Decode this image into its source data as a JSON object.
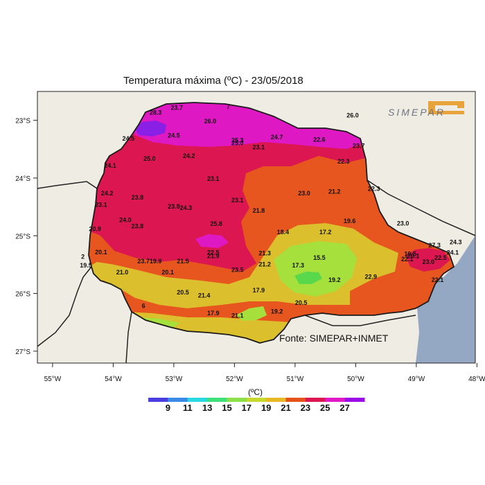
{
  "title": "Temperatura máxima (ºC)  -  23/05/2018",
  "source": "Fonte: SIMEPAR+INMET",
  "logo": "SIMEPAR",
  "unit_label": "(ºC)",
  "axes": {
    "lon_labels": [
      "55°W",
      "54°W",
      "53°W",
      "52°W",
      "51°W",
      "50°W",
      "49°W",
      "48°W"
    ],
    "lat_labels": [
      "23°S",
      "24°S",
      "25°S",
      "26°S",
      "27°S"
    ]
  },
  "colorbar": {
    "ticks": [
      "9",
      "11",
      "13",
      "15",
      "17",
      "19",
      "21",
      "23",
      "25",
      "27"
    ],
    "colors": [
      "#4b3de0",
      "#3a8be8",
      "#2ad8e0",
      "#3fe07a",
      "#8ee04a",
      "#c6d92c",
      "#e8b826",
      "#e6521c",
      "#dc1650",
      "#e21ac6",
      "#9a0ce8"
    ]
  },
  "colors": {
    "land": "#efece4",
    "ocean": "#94a8c4",
    "band_15_17": "#58d84a",
    "band_17_19": "#a6e03c",
    "band_19_21": "#dcbf2c",
    "band_21_23": "#e6561e",
    "band_23_25": "#dc1650",
    "band_25_27": "#de18c2",
    "band_27_29": "#8a20e6"
  },
  "station_values": [
    {
      "lon": -53.3,
      "lat": -22.9,
      "label": "28.3"
    },
    {
      "lon": -52.4,
      "lat": -23.05,
      "label": "26.0"
    },
    {
      "lon": -53.75,
      "lat": -23.35,
      "label": "24.5"
    },
    {
      "lon": -53.0,
      "lat": -23.3,
      "label": "24.5"
    },
    {
      "lon": -51.95,
      "lat": -23.38,
      "label": "25.3"
    },
    {
      "lon": -51.95,
      "lat": -23.43,
      "label": "25.0"
    },
    {
      "lon": -51.6,
      "lat": -23.5,
      "label": "23.1"
    },
    {
      "lon": -51.3,
      "lat": -23.33,
      "label": "24.7"
    },
    {
      "lon": -50.6,
      "lat": -23.37,
      "label": "22.6"
    },
    {
      "lon": -49.95,
      "lat": -23.48,
      "label": "23.7"
    },
    {
      "lon": -50.2,
      "lat": -23.75,
      "label": "22.3"
    },
    {
      "lon": -53.4,
      "lat": -23.7,
      "label": "25.0"
    },
    {
      "lon": -52.75,
      "lat": -23.65,
      "label": "24.2"
    },
    {
      "lon": -54.05,
      "lat": -23.82,
      "label": "24.1"
    },
    {
      "lon": -52.35,
      "lat": -24.05,
      "label": "23.1"
    },
    {
      "lon": -54.1,
      "lat": -24.3,
      "label": "24.2"
    },
    {
      "lon": -53.6,
      "lat": -24.37,
      "label": "23.8"
    },
    {
      "lon": -54.2,
      "lat": -24.5,
      "label": "23.1"
    },
    {
      "lon": -53.0,
      "lat": -24.53,
      "label": "23.8"
    },
    {
      "lon": -52.8,
      "lat": -24.55,
      "label": "24.3"
    },
    {
      "lon": -51.95,
      "lat": -24.42,
      "label": "23.1"
    },
    {
      "lon": -53.8,
      "lat": -24.76,
      "label": "24.0"
    },
    {
      "lon": -53.6,
      "lat": -24.87,
      "label": "23.8"
    },
    {
      "lon": -52.3,
      "lat": -24.83,
      "label": "25.8"
    },
    {
      "lon": -51.6,
      "lat": -24.6,
      "label": "21.8"
    },
    {
      "lon": -50.85,
      "lat": -24.3,
      "label": "23.0"
    },
    {
      "lon": -50.35,
      "lat": -24.27,
      "label": "21.2"
    },
    {
      "lon": -49.7,
      "lat": -24.22,
      "label": "22.3"
    },
    {
      "lon": -50.1,
      "lat": -24.78,
      "label": "19.6"
    },
    {
      "lon": -49.22,
      "lat": -24.82,
      "label": "23.0"
    },
    {
      "lon": -51.2,
      "lat": -24.97,
      "label": "18.4"
    },
    {
      "lon": -50.5,
      "lat": -24.97,
      "label": "17.2"
    },
    {
      "lon": -54.3,
      "lat": -24.92,
      "label": "20.9"
    },
    {
      "lon": -54.2,
      "lat": -25.32,
      "label": "20.1"
    },
    {
      "lon": -54.5,
      "lat": -25.4,
      "label": "2"
    },
    {
      "lon": -54.45,
      "lat": -25.55,
      "label": "19.5"
    },
    {
      "lon": -53.5,
      "lat": -25.48,
      "label": "23.7"
    },
    {
      "lon": -53.3,
      "lat": -25.48,
      "label": "19.9"
    },
    {
      "lon": -52.85,
      "lat": -25.48,
      "label": "21.5"
    },
    {
      "lon": -53.85,
      "lat": -25.67,
      "label": "21.0"
    },
    {
      "lon": -53.1,
      "lat": -25.67,
      "label": "20.1"
    },
    {
      "lon": -52.35,
      "lat": -25.33,
      "label": "22.5"
    },
    {
      "lon": -52.35,
      "lat": -25.39,
      "label": "21.9"
    },
    {
      "lon": -51.95,
      "lat": -25.63,
      "label": "23.5"
    },
    {
      "lon": -51.5,
      "lat": -25.34,
      "label": "21.3"
    },
    {
      "lon": -51.5,
      "lat": -25.53,
      "label": "21.2"
    },
    {
      "lon": -50.95,
      "lat": -25.55,
      "label": "17.3"
    },
    {
      "lon": -50.6,
      "lat": -25.42,
      "label": "15.5"
    },
    {
      "lon": -50.35,
      "lat": -25.8,
      "label": "19.2"
    },
    {
      "lon": -49.75,
      "lat": -25.75,
      "label": "22.9"
    },
    {
      "lon": -49.1,
      "lat": -25.35,
      "label": "19.5"
    },
    {
      "lon": -49.05,
      "lat": -25.39,
      "label": "20.1"
    },
    {
      "lon": -49.15,
      "lat": -25.44,
      "label": "22.1"
    },
    {
      "lon": -48.7,
      "lat": -25.2,
      "label": "27.3"
    },
    {
      "lon": -48.35,
      "lat": -25.15,
      "label": "24.3"
    },
    {
      "lon": -48.6,
      "lat": -25.42,
      "label": "22.5"
    },
    {
      "lon": -48.8,
      "lat": -25.49,
      "label": "23.0"
    },
    {
      "lon": -48.4,
      "lat": -25.33,
      "label": "24.1"
    },
    {
      "lon": -48.65,
      "lat": -25.8,
      "label": "22.1"
    },
    {
      "lon": -52.85,
      "lat": -26.02,
      "label": "20.5"
    },
    {
      "lon": -52.5,
      "lat": -26.07,
      "label": "21.4"
    },
    {
      "lon": -51.6,
      "lat": -25.98,
      "label": "17.9"
    },
    {
      "lon": -51.3,
      "lat": -26.35,
      "label": "19.2"
    },
    {
      "lon": -50.9,
      "lat": -26.2,
      "label": "20.5"
    },
    {
      "lon": -52.35,
      "lat": -26.38,
      "label": "17.9"
    },
    {
      "lon": -51.95,
      "lat": -26.42,
      "label": "21.1"
    },
    {
      "lon": -53.5,
      "lat": -26.25,
      "label": "6"
    },
    {
      "lon": -52.1,
      "lat": -22.8,
      "label": "7"
    },
    {
      "lon": -52.95,
      "lat": -22.82,
      "label": "23.7"
    },
    {
      "lon": -50.05,
      "lat": -22.95,
      "label": "26.0"
    }
  ]
}
